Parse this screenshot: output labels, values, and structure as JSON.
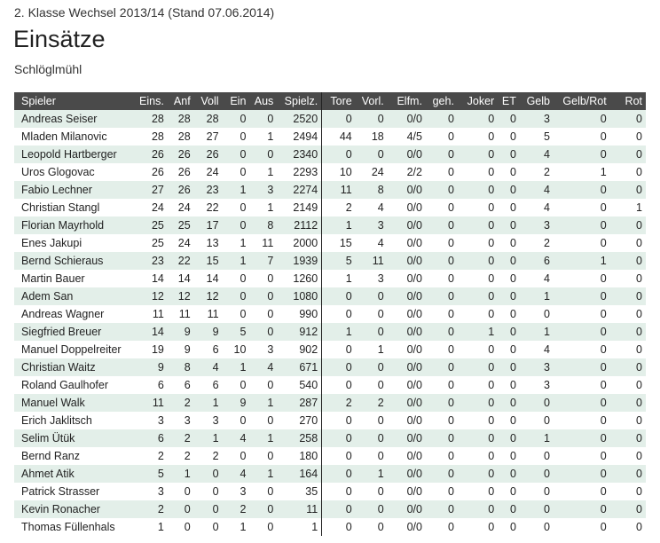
{
  "header": {
    "subtitle": "2. Klasse Wechsel 2013/14 (Stand 07.06.2014)",
    "title": "Einsätze",
    "team": "Schlöglmühl"
  },
  "table": {
    "columns": [
      "Spieler",
      "Eins.",
      "Anf",
      "Voll",
      "Ein",
      "Aus",
      "Spielz.",
      "Tore",
      "Vorl.",
      "Elfm.",
      "geh.",
      "Joker",
      "ET",
      "Gelb",
      "Gelb/Rot",
      "Rot"
    ],
    "rows": [
      [
        "Andreas Seiser",
        "28",
        "28",
        "28",
        "0",
        "0",
        "2520",
        "0",
        "0",
        "0/0",
        "0",
        "0",
        "0",
        "3",
        "0",
        "0"
      ],
      [
        "Mladen Milanovic",
        "28",
        "28",
        "27",
        "0",
        "1",
        "2494",
        "44",
        "18",
        "4/5",
        "0",
        "0",
        "0",
        "5",
        "0",
        "0"
      ],
      [
        "Leopold Hartberger",
        "26",
        "26",
        "26",
        "0",
        "0",
        "2340",
        "0",
        "0",
        "0/0",
        "0",
        "0",
        "0",
        "4",
        "0",
        "0"
      ],
      [
        "Uros Glogovac",
        "26",
        "26",
        "24",
        "0",
        "1",
        "2293",
        "10",
        "24",
        "2/2",
        "0",
        "0",
        "0",
        "2",
        "1",
        "0"
      ],
      [
        "Fabio Lechner",
        "27",
        "26",
        "23",
        "1",
        "3",
        "2274",
        "11",
        "8",
        "0/0",
        "0",
        "0",
        "0",
        "4",
        "0",
        "0"
      ],
      [
        "Christian Stangl",
        "24",
        "24",
        "22",
        "0",
        "1",
        "2149",
        "2",
        "4",
        "0/0",
        "0",
        "0",
        "0",
        "4",
        "0",
        "1"
      ],
      [
        "Florian Mayrhold",
        "25",
        "25",
        "17",
        "0",
        "8",
        "2112",
        "1",
        "3",
        "0/0",
        "0",
        "0",
        "0",
        "3",
        "0",
        "0"
      ],
      [
        "Enes Jakupi",
        "25",
        "24",
        "13",
        "1",
        "11",
        "2000",
        "15",
        "4",
        "0/0",
        "0",
        "0",
        "0",
        "2",
        "0",
        "0"
      ],
      [
        "Bernd Schieraus",
        "23",
        "22",
        "15",
        "1",
        "7",
        "1939",
        "5",
        "11",
        "0/0",
        "0",
        "0",
        "0",
        "6",
        "1",
        "0"
      ],
      [
        "Martin Bauer",
        "14",
        "14",
        "14",
        "0",
        "0",
        "1260",
        "1",
        "3",
        "0/0",
        "0",
        "0",
        "0",
        "4",
        "0",
        "0"
      ],
      [
        "Adem San",
        "12",
        "12",
        "12",
        "0",
        "0",
        "1080",
        "0",
        "0",
        "0/0",
        "0",
        "0",
        "0",
        "1",
        "0",
        "0"
      ],
      [
        "Andreas Wagner",
        "11",
        "11",
        "11",
        "0",
        "0",
        "990",
        "0",
        "0",
        "0/0",
        "0",
        "0",
        "0",
        "0",
        "0",
        "0"
      ],
      [
        "Siegfried Breuer",
        "14",
        "9",
        "9",
        "5",
        "0",
        "912",
        "1",
        "0",
        "0/0",
        "0",
        "1",
        "0",
        "1",
        "0",
        "0"
      ],
      [
        "Manuel Doppelreiter",
        "19",
        "9",
        "6",
        "10",
        "3",
        "902",
        "0",
        "1",
        "0/0",
        "0",
        "0",
        "0",
        "4",
        "0",
        "0"
      ],
      [
        "Christian Waitz",
        "9",
        "8",
        "4",
        "1",
        "4",
        "671",
        "0",
        "0",
        "0/0",
        "0",
        "0",
        "0",
        "3",
        "0",
        "0"
      ],
      [
        "Roland Gaulhofer",
        "6",
        "6",
        "6",
        "0",
        "0",
        "540",
        "0",
        "0",
        "0/0",
        "0",
        "0",
        "0",
        "3",
        "0",
        "0"
      ],
      [
        "Manuel Walk",
        "11",
        "2",
        "1",
        "9",
        "1",
        "287",
        "2",
        "2",
        "0/0",
        "0",
        "0",
        "0",
        "0",
        "0",
        "0"
      ],
      [
        "Erich Jaklitsch",
        "3",
        "3",
        "3",
        "0",
        "0",
        "270",
        "0",
        "0",
        "0/0",
        "0",
        "0",
        "0",
        "0",
        "0",
        "0"
      ],
      [
        "Selim Ütük",
        "6",
        "2",
        "1",
        "4",
        "1",
        "258",
        "0",
        "0",
        "0/0",
        "0",
        "0",
        "0",
        "1",
        "0",
        "0"
      ],
      [
        "Bernd Ranz",
        "2",
        "2",
        "2",
        "0",
        "0",
        "180",
        "0",
        "0",
        "0/0",
        "0",
        "0",
        "0",
        "0",
        "0",
        "0"
      ],
      [
        "Ahmet Atik",
        "5",
        "1",
        "0",
        "4",
        "1",
        "164",
        "0",
        "1",
        "0/0",
        "0",
        "0",
        "0",
        "0",
        "0",
        "0"
      ],
      [
        "Patrick Strasser",
        "3",
        "0",
        "0",
        "3",
        "0",
        "35",
        "0",
        "0",
        "0/0",
        "0",
        "0",
        "0",
        "0",
        "0",
        "0"
      ],
      [
        "Kevin Ronacher",
        "2",
        "0",
        "0",
        "2",
        "0",
        "11",
        "0",
        "0",
        "0/0",
        "0",
        "0",
        "0",
        "0",
        "0",
        "0"
      ],
      [
        "Thomas Füllenhals",
        "1",
        "0",
        "0",
        "1",
        "0",
        "1",
        "0",
        "0",
        "0/0",
        "0",
        "0",
        "0",
        "0",
        "0",
        "0"
      ]
    ]
  }
}
